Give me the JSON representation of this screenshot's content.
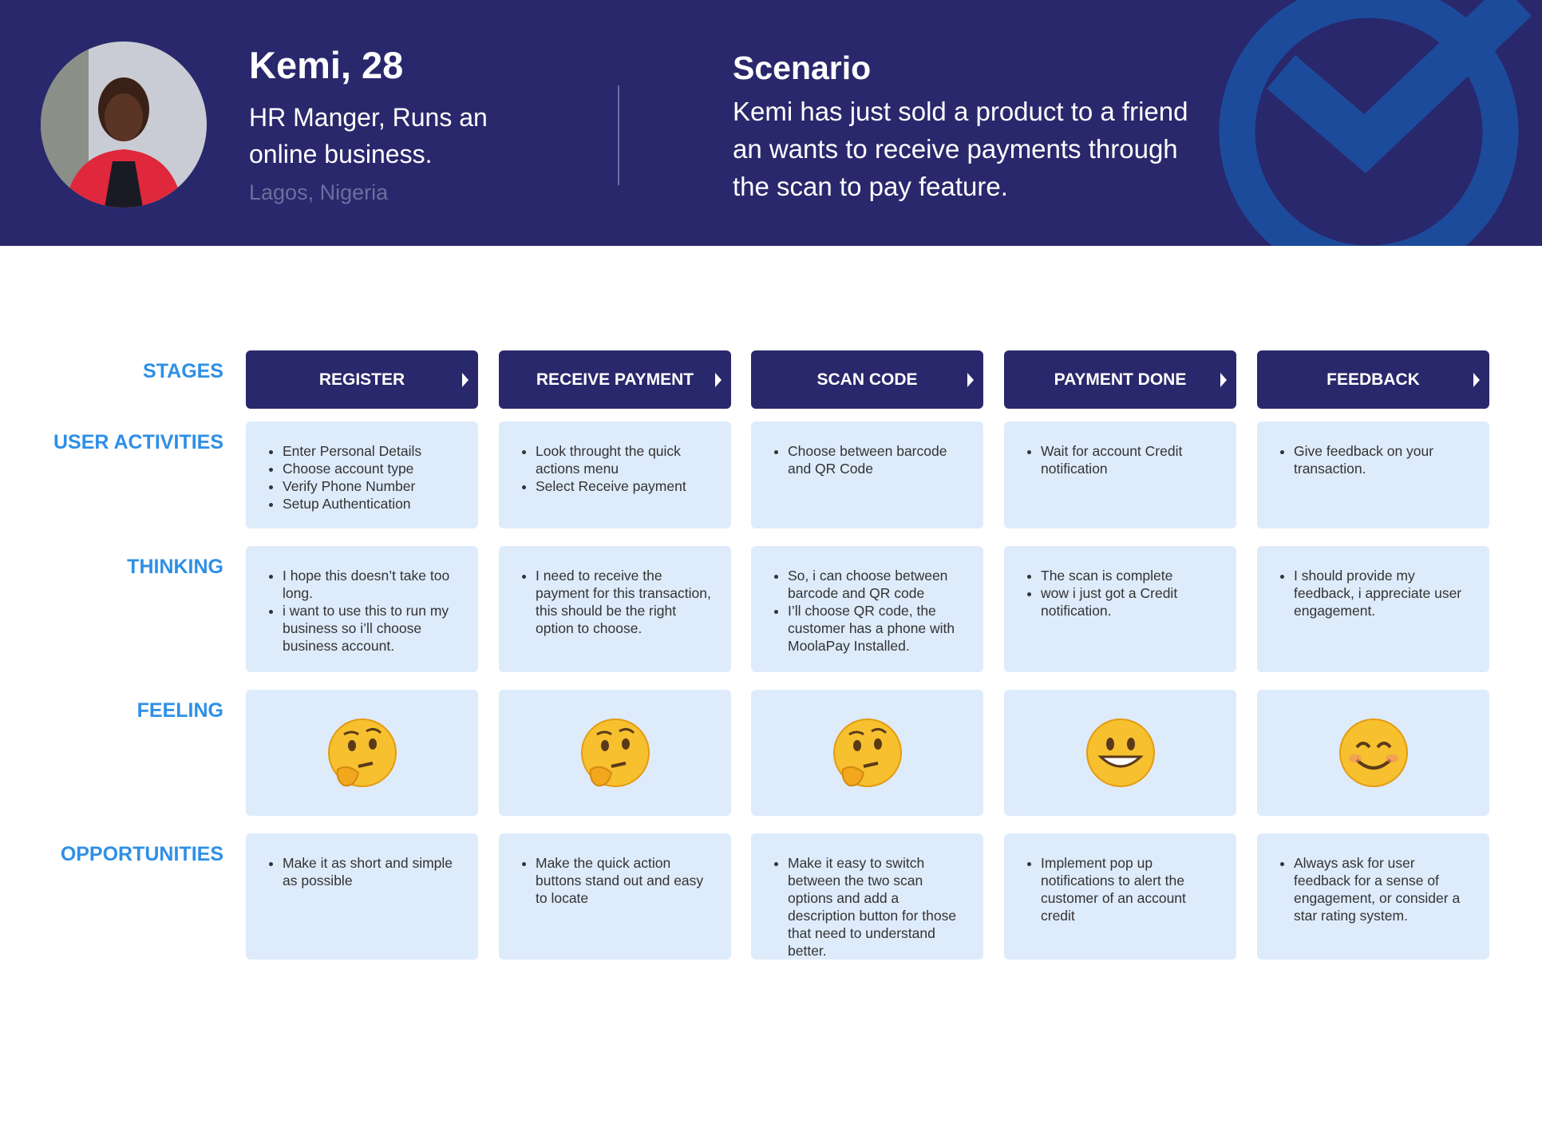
{
  "header": {
    "name": "Kemi, 28",
    "role": "HR Manger, Runs an online business.",
    "location": "Lagos, Nigeria",
    "scenario_title": "Scenario",
    "scenario_text": "Kemi has just sold a product to a friend an wants to receive payments through the scan to pay feature."
  },
  "journey": {
    "row_labels": [
      "STAGES",
      "USER ACTIVITIES",
      "THINKING",
      "FEELING",
      "OPPORTUNITIES"
    ],
    "stages": [
      "REGISTER",
      "RECEIVE PAYMENT",
      "SCAN CODE",
      "PAYMENT DONE",
      "FEEDBACK"
    ],
    "user_activities": [
      [
        "Enter Personal Details",
        "Choose account type",
        "Verify Phone Number",
        "Setup Authentication"
      ],
      [
        "Look throught the quick actions menu",
        "Select Receive payment"
      ],
      [
        "Choose between barcode and QR Code"
      ],
      [
        "Wait for account Credit notification"
      ],
      [
        "Give feedback on your transaction."
      ]
    ],
    "thinking": [
      [
        "I hope this doesn’t take too long.",
        "i want to use this to run my business so i’ll choose business account."
      ],
      [
        "I need to receive the payment for this transaction, this should be the right option to choose."
      ],
      [
        "So, i can choose between barcode and QR code",
        "I’ll choose QR code, the customer has a phone with MoolaPay Installed."
      ],
      [
        "The scan is complete",
        "wow i just got a Credit notification."
      ],
      [
        "I should provide my feedback, i appreciate user engagement."
      ]
    ],
    "opportunities": [
      [
        "Make it as short and simple as possible"
      ],
      [
        "Make the quick action buttons stand out and easy to locate"
      ],
      [
        "Make it easy to switch between the two scan options and add a description button for those that need to understand better."
      ],
      [
        "Implement pop up notifications to alert the customer of an account credit"
      ],
      [
        "Always ask for user feedback for a sense of engagement, or consider a star rating system."
      ]
    ]
  }
}
